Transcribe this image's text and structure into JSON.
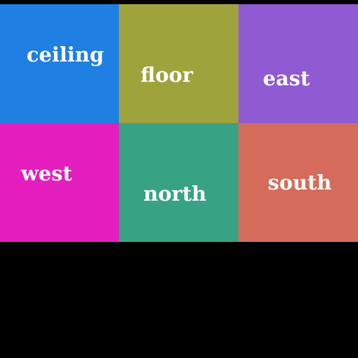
{
  "tiles": [
    {
      "label": "ceiling",
      "color": "#1f7fe3"
    },
    {
      "label": "floor",
      "color": "#9fa33c"
    },
    {
      "label": "east",
      "color": "#905ad3"
    },
    {
      "label": "west",
      "color": "#e41ebf"
    },
    {
      "label": "north",
      "color": "#37a384"
    },
    {
      "label": "south",
      "color": "#d56c5b"
    }
  ],
  "background": "#000000"
}
